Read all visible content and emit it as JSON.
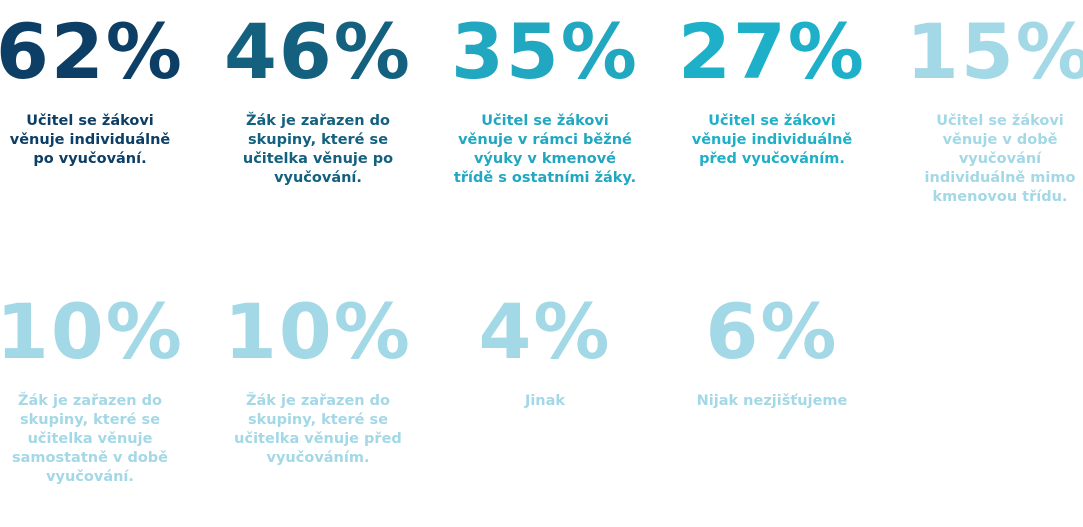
{
  "items": [
    {
      "value": "62%",
      "color": "#0d3f66",
      "lines": [
        "Učitel se žákovi",
        "věnuje individuálně",
        "po vyučování."
      ]
    },
    {
      "value": "46%",
      "color": "#13607f",
      "lines": [
        "Žák je zařazen do",
        "skupiny, které se",
        "učitelka věnuje po",
        "vyučování."
      ]
    },
    {
      "value": "35%",
      "color": "#22a7c1",
      "lines": [
        "Učitel se žákovi",
        "věnuje v rámci běžné",
        "výuky v kmenové",
        "třídě s ostatními žáky."
      ]
    },
    {
      "value": "27%",
      "color": "#1eb0c8",
      "lines": [
        "Učitel se žákovi",
        "věnuje individuálně",
        "před vyučováním."
      ]
    },
    {
      "value": "15%",
      "color": "#a3d8e6",
      "lines": [
        "Učitel se žákovi",
        "věnuje v době",
        "vyučování",
        "individuálně mimo",
        "kmenovou třídu."
      ]
    },
    {
      "value": "10%",
      "color": "#a3d8e6",
      "lines": [
        "Žák  je zařazen do",
        "skupiny, které se",
        "učitelka věnuje",
        "samostatně v době",
        "vyučování."
      ]
    },
    {
      "value": "10%",
      "color": "#a3d8e6",
      "lines": [
        "Žák  je zařazen do",
        "skupiny, které se",
        "učitelka věnuje před",
        "vyučováním."
      ]
    },
    {
      "value": "4%",
      "color": "#a3d8e6",
      "lines": [
        "Jinak"
      ]
    },
    {
      "value": "6%",
      "color": "#a3d8e6",
      "lines": [
        "Nijak nezjišťujeme"
      ]
    }
  ]
}
